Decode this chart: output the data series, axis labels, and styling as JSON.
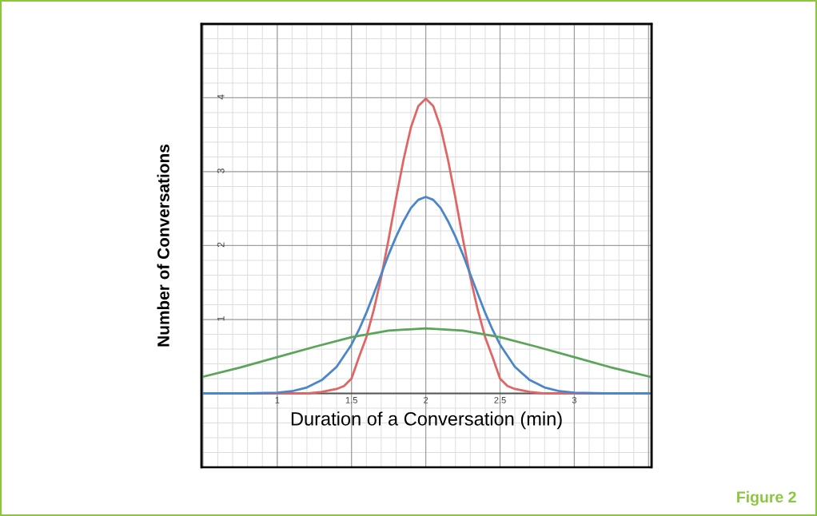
{
  "chart_data": {
    "type": "line",
    "xlabel": "Duration of a Conversation (min)",
    "ylabel": "Number of Conversations",
    "xlim": [
      0.49,
      3.52
    ],
    "ylim": [
      -1,
      5
    ],
    "xticks": [
      {
        "value": 0.5,
        "label": null
      },
      1,
      1.5,
      2,
      2.5,
      3,
      {
        "value": 3.5,
        "label": null
      }
    ],
    "yticks": [
      {
        "value": 0,
        "label": null
      },
      1,
      2,
      3,
      4
    ],
    "grid": true,
    "legend": false,
    "marker": "none",
    "line_style": "solid",
    "annotations": [
      "Figure 2"
    ],
    "series": [
      {
        "color": "#e06666",
        "x": [
          0.5,
          1.0,
          1.2,
          1.3,
          1.4,
          1.45,
          1.5,
          1.55,
          1.6,
          1.65,
          1.7,
          1.75,
          1.8,
          1.85,
          1.9,
          1.95,
          2.0,
          2.05,
          2.1,
          2.15,
          2.2,
          2.25,
          2.3,
          2.35,
          2.4,
          2.45,
          2.5,
          2.55,
          2.6,
          2.7,
          2.8,
          3.0,
          3.5
        ],
        "values": [
          0,
          0,
          0,
          0.02,
          0.06,
          0.1,
          0.2,
          0.49,
          0.76,
          1.13,
          1.57,
          2.09,
          2.64,
          3.16,
          3.6,
          3.89,
          3.99,
          3.89,
          3.6,
          3.16,
          2.64,
          2.09,
          1.57,
          1.13,
          0.76,
          0.49,
          0.2,
          0.1,
          0.06,
          0.02,
          0,
          0,
          0
        ]
      },
      {
        "color": "#4a86c8",
        "x": [
          0.5,
          0.8,
          1.0,
          1.1,
          1.2,
          1.3,
          1.4,
          1.5,
          1.55,
          1.6,
          1.65,
          1.7,
          1.75,
          1.8,
          1.85,
          1.9,
          1.95,
          2.0,
          2.05,
          2.1,
          2.15,
          2.2,
          2.25,
          2.3,
          2.35,
          2.4,
          2.45,
          2.5,
          2.6,
          2.7,
          2.8,
          2.9,
          3.0,
          3.2,
          3.5
        ],
        "values": [
          0,
          0,
          0.01,
          0.03,
          0.08,
          0.18,
          0.36,
          0.66,
          0.86,
          1.09,
          1.35,
          1.61,
          1.88,
          2.12,
          2.33,
          2.51,
          2.62,
          2.66,
          2.62,
          2.51,
          2.33,
          2.12,
          1.88,
          1.61,
          1.35,
          1.09,
          0.86,
          0.66,
          0.36,
          0.18,
          0.08,
          0.03,
          0.01,
          0,
          0
        ]
      },
      {
        "color": "#5aa55a",
        "x": [
          0.49,
          0.75,
          1.0,
          1.25,
          1.5,
          1.75,
          2.0,
          2.25,
          2.5,
          2.75,
          3.0,
          3.25,
          3.52
        ],
        "values": [
          0.22,
          0.35,
          0.49,
          0.63,
          0.76,
          0.85,
          0.88,
          0.85,
          0.76,
          0.63,
          0.49,
          0.35,
          0.22
        ]
      }
    ]
  }
}
